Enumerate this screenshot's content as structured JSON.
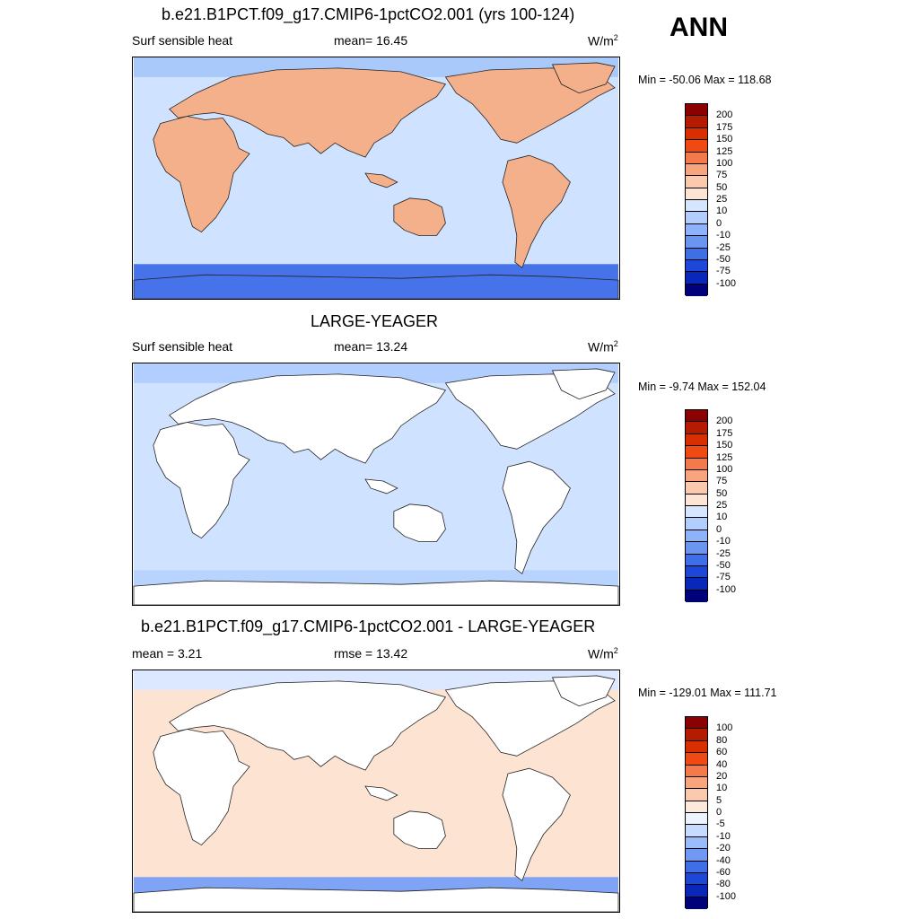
{
  "season": "ANN",
  "panels": [
    {
      "title": "b.e21.B1PCT.f09_g17.CMIP6-1pctCO2.001 (yrs 100-124)",
      "left_label": "Surf sensible heat",
      "center_label": "mean=  16.45",
      "units": "W/m",
      "units_sup": "2",
      "minmax": "Min = -50.06 Max = 118.68",
      "ocean_color": "#cfe2ff",
      "land_color": "#f4b08a",
      "south_color": "#4673ea",
      "north_color": "#a9c9fb",
      "colorbar": {
        "labels": [
          "200",
          "175",
          "150",
          "125",
          "100",
          "75",
          "50",
          "25",
          "10",
          "0",
          "-10",
          "-25",
          "-50",
          "-75",
          "-100"
        ],
        "colors": [
          "#8b0000",
          "#b41b00",
          "#d92e00",
          "#ef4a14",
          "#f47a4b",
          "#f8a57e",
          "#fbc9ad",
          "#fde4d3",
          "#d6e6ff",
          "#b2ceff",
          "#8fb3fb",
          "#6a96f2",
          "#3f6fe6",
          "#1c47d8",
          "#0a27bb",
          "#00007a"
        ]
      }
    },
    {
      "title": "LARGE-YEAGER",
      "left_label": "Surf sensible heat",
      "center_label": "mean=  13.24",
      "units": "W/m",
      "units_sup": "2",
      "minmax": "Min =  -9.74 Max = 152.04",
      "ocean_color": "#cfe2ff",
      "land_color": "#ffffff",
      "south_color": "#b9d3ff",
      "north_color": "#b2ceff",
      "colorbar": {
        "labels": [
          "200",
          "175",
          "150",
          "125",
          "100",
          "75",
          "50",
          "25",
          "10",
          "0",
          "-10",
          "-25",
          "-50",
          "-75",
          "-100"
        ],
        "colors": [
          "#8b0000",
          "#b41b00",
          "#d92e00",
          "#ef4a14",
          "#f47a4b",
          "#f8a57e",
          "#fbc9ad",
          "#fde4d3",
          "#d6e6ff",
          "#b2ceff",
          "#8fb3fb",
          "#6a96f2",
          "#3f6fe6",
          "#1c47d8",
          "#0a27bb",
          "#00007a"
        ]
      }
    },
    {
      "title": "b.e21.B1PCT.f09_g17.CMIP6-1pctCO2.001 - LARGE-YEAGER",
      "left_label": "mean =   3.21",
      "center_label": "rmse =  13.42",
      "units": "W/m",
      "units_sup": "2",
      "minmax": "Min = -129.01 Max = 111.71",
      "ocean_color": "#fde3d2",
      "land_color": "#ffffff",
      "south_color": "#7fa3f5",
      "north_color": "#dce8ff",
      "colorbar": {
        "labels": [
          "100",
          "80",
          "60",
          "40",
          "20",
          "10",
          "5",
          "0",
          "-5",
          "-10",
          "-20",
          "-40",
          "-60",
          "-80",
          "-100"
        ],
        "colors": [
          "#8b0000",
          "#b41b00",
          "#d92e00",
          "#ef4a14",
          "#f47a4b",
          "#f8a57e",
          "#fbc9ad",
          "#fde8dc",
          "#eef4ff",
          "#c6dbff",
          "#9bbcfb",
          "#7198f2",
          "#3f6fe6",
          "#1c47d8",
          "#0a27bb",
          "#00007a"
        ]
      }
    }
  ]
}
